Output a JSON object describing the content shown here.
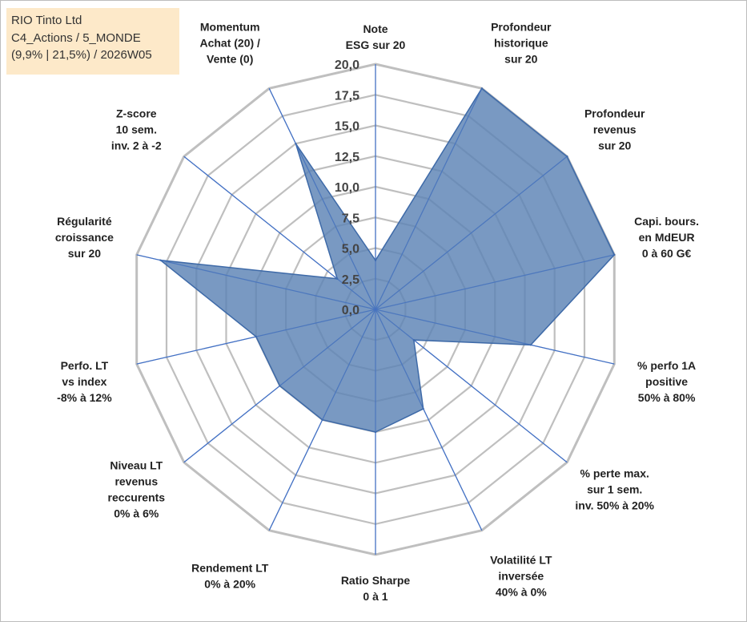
{
  "info_box": {
    "line1": "RIO Tinto Ltd",
    "line2": "C4_Actions / 5_MONDE",
    "line3": "(9,9% | 21,5%) / 2026W05"
  },
  "colors": {
    "fill": "#5b82b4",
    "stroke": "#3e6aa8",
    "spoke": "#4472c4",
    "grid": "#bfbfbf",
    "info_bg": "#fde9c9"
  },
  "chart_data": {
    "type": "radar",
    "range": [
      0,
      20
    ],
    "tick_step": 2.5,
    "tick_labels": [
      "0,0",
      "2,5",
      "5,0",
      "7,5",
      "10,0",
      "12,5",
      "15,0",
      "17,5",
      "20,0"
    ],
    "grid": true,
    "axes": [
      [
        "Note",
        "ESG sur 20"
      ],
      [
        "Profondeur",
        "historique",
        "sur 20"
      ],
      [
        "Profondeur",
        "revenus",
        "sur 20"
      ],
      [
        "Capi. bours.",
        "en MdEUR",
        "0 à 60 G€"
      ],
      [
        "% perfo 1A",
        "positive",
        "50% à 80%"
      ],
      [
        "% perte max.",
        "sur 1 sem.",
        "inv. 50% à 20%"
      ],
      [
        "Volatilité LT",
        "inversée",
        "40% à 0%"
      ],
      [
        "Ratio Sharpe",
        "0 à 1"
      ],
      [
        "Rendement LT",
        "0% à 20%"
      ],
      [
        "Niveau LT",
        "revenus",
        "reccurents",
        "0% à 6%"
      ],
      [
        "Perfo. LT",
        "vs index",
        "-8% à 12%"
      ],
      [
        "Régularité",
        "croissance",
        "sur 20"
      ],
      [
        "Z-score",
        "10 sem.",
        "inv. 2 à -2"
      ],
      [
        "Momentum",
        "Achat (20) /",
        "Vente (0)"
      ]
    ],
    "values": [
      4,
      20,
      20,
      20,
      13,
      4,
      9,
      10,
      10,
      10,
      10,
      18,
      4,
      15
    ]
  }
}
